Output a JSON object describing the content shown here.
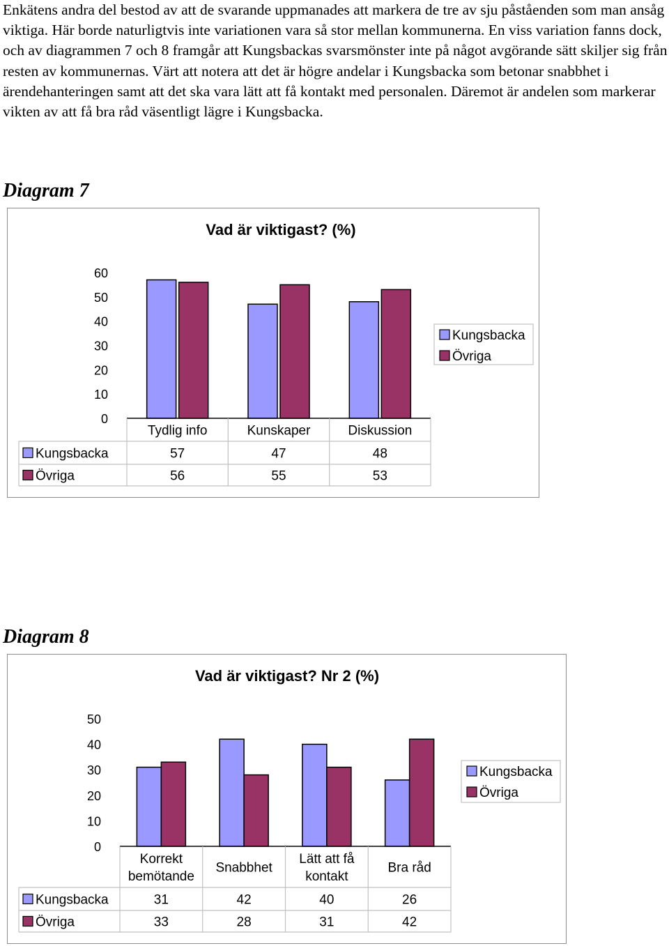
{
  "intro": {
    "paragraph": "Enkätens andra del bestod av att de svarande uppmanades att markera de tre av sju påståenden som man ansåg viktiga. Här borde naturligtvis inte variationen vara så stor mellan kommunerna. En viss variation fanns dock, och av diagrammen 7 och 8 framgår att Kungsbackas svarsmönster inte på något avgörande sätt skiljer sig från resten av kommunernas. Värt att notera att det är högre andelar i Kungsbacka som betonar snabbhet i ärendehanteringen samt att det ska vara lätt att få kontakt med personalen. Däremot är andelen som markerar vikten av att få bra råd väsentligt lägre i Kungsbacka."
  },
  "diagram7": {
    "heading": "Diagram 7"
  },
  "diagram8": {
    "heading": "Diagram 8"
  },
  "colors": {
    "kungsbacka": "#9999ff",
    "ovriga": "#993366",
    "gridline": "#c0c0c0",
    "border": "#8c8c8c"
  },
  "chart_data": [
    {
      "type": "bar",
      "title": "Vad är viktigast? (%)",
      "categories": [
        "Tydlig info",
        "Kunskaper",
        "Diskussion"
      ],
      "series": [
        {
          "name": "Kungsbacka",
          "values": [
            57,
            47,
            48
          ]
        },
        {
          "name": "Övriga",
          "values": [
            56,
            55,
            53
          ]
        }
      ],
      "yticks": [
        "0",
        "10",
        "20",
        "30",
        "40",
        "50",
        "60"
      ],
      "ylim": [
        0,
        60
      ],
      "legend": "right",
      "data_table": true
    },
    {
      "type": "bar",
      "title": "Vad är viktigast? Nr 2 (%)",
      "categories": [
        [
          "Korrekt",
          "bemötande"
        ],
        [
          "Snabbhet"
        ],
        [
          "Lätt att få",
          "kontakt"
        ],
        [
          "Bra råd"
        ]
      ],
      "series": [
        {
          "name": "Kungsbacka",
          "values": [
            31,
            42,
            40,
            26
          ]
        },
        {
          "name": "Övriga",
          "values": [
            33,
            28,
            31,
            42
          ]
        }
      ],
      "yticks": [
        "0",
        "10",
        "20",
        "30",
        "40",
        "50"
      ],
      "ylim": [
        0,
        50
      ],
      "legend": "right",
      "data_table": true
    }
  ]
}
